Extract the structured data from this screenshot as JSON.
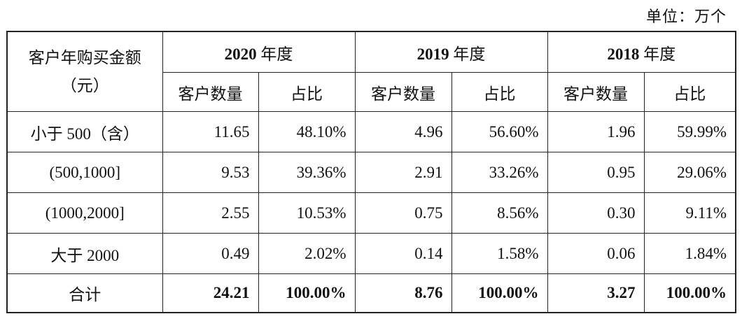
{
  "unit_note": "单位：万个",
  "table": {
    "corner_header": {
      "line1": "客户年购买金额",
      "line2": "（元）"
    },
    "years": [
      {
        "year": "2020",
        "suffix": " 年度"
      },
      {
        "year": "2019",
        "suffix": " 年度"
      },
      {
        "year": "2018",
        "suffix": " 年度"
      }
    ],
    "sub_headers": {
      "count": "客户数量",
      "ratio": "占比"
    },
    "rows": [
      {
        "label": "小于 500（含）",
        "cells": [
          "11.65",
          "48.10%",
          "4.96",
          "56.60%",
          "1.96",
          "59.99%"
        ]
      },
      {
        "label": "(500,1000]",
        "cells": [
          "9.53",
          "39.36%",
          "2.91",
          "33.26%",
          "0.95",
          "29.06%"
        ]
      },
      {
        "label": "(1000,2000]",
        "cells": [
          "2.55",
          "10.53%",
          "0.75",
          "8.56%",
          "0.30",
          "9.11%"
        ]
      },
      {
        "label": "大于 2000",
        "cells": [
          "0.49",
          "2.02%",
          "0.14",
          "1.58%",
          "0.06",
          "1.84%"
        ]
      }
    ],
    "total": {
      "label": "合计",
      "cells": [
        "24.21",
        "100.00%",
        "8.76",
        "100.00%",
        "3.27",
        "100.00%"
      ]
    }
  }
}
